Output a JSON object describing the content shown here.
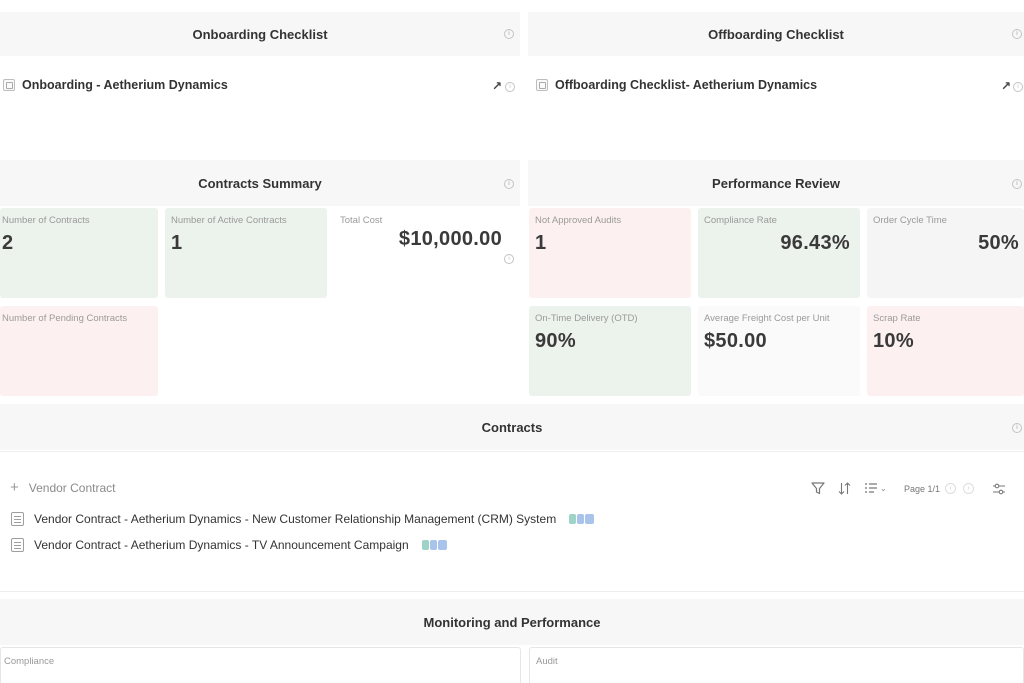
{
  "onboarding": {
    "title": "Onboarding Checklist",
    "link": "Onboarding - Aetherium Dynamics"
  },
  "offboarding": {
    "title": "Offboarding Checklist",
    "link": "Offboarding Checklist- Aetherium Dynamics"
  },
  "contracts_summary": {
    "title": "Contracts Summary",
    "stats": [
      {
        "label": "Number of Contracts",
        "value": "2",
        "status": "green"
      },
      {
        "label": "Number of Active Contracts",
        "value": "1",
        "status": "green"
      },
      {
        "label": "Total Cost",
        "value": "$10,000.00",
        "status": "neutral"
      },
      {
        "label": "Number of Pending Contracts",
        "value": "",
        "status": "red"
      }
    ]
  },
  "performance_review": {
    "title": "Performance Review",
    "stats": [
      {
        "label": "Not Approved Audits",
        "value": "1",
        "status": "red"
      },
      {
        "label": "Compliance Rate",
        "value": "96.43%",
        "status": "green"
      },
      {
        "label": "Order Cycle Time",
        "value": "50%",
        "status": "neutral"
      },
      {
        "label": "On-Time Delivery (OTD)",
        "value": "90%",
        "status": "green"
      },
      {
        "label": "Average Freight Cost per Unit",
        "value": "$50.00",
        "status": "neutral"
      },
      {
        "label": "Scrap Rate",
        "value": "10%",
        "status": "red"
      }
    ]
  },
  "contracts": {
    "title": "Contracts",
    "new_item_label": "Vendor Contract",
    "page_label": "Page 1/1",
    "rows": [
      {
        "name": "Vendor Contract - Aetherium Dynamics - New Customer Relationship Management (CRM) System"
      },
      {
        "name": "Vendor Contract - Aetherium Dynamics - TV Announcement Campaign"
      }
    ]
  },
  "monitoring": {
    "title": "Monitoring and Performance",
    "compliance_title": "Compliance",
    "audit_title": "Audit"
  },
  "colors": {
    "green_card": "#ecf2ec",
    "red_card": "#fdf0f0",
    "neutral_card": "#f5f5f5",
    "tag_teal": "#9fd3c7",
    "tag_blue": "#a9c4ea"
  },
  "icons": [
    "info-icon",
    "open-arrow-icon",
    "doc-icon",
    "plus-icon",
    "filter-icon",
    "sort-icon",
    "view-icon",
    "settings-icon"
  ]
}
